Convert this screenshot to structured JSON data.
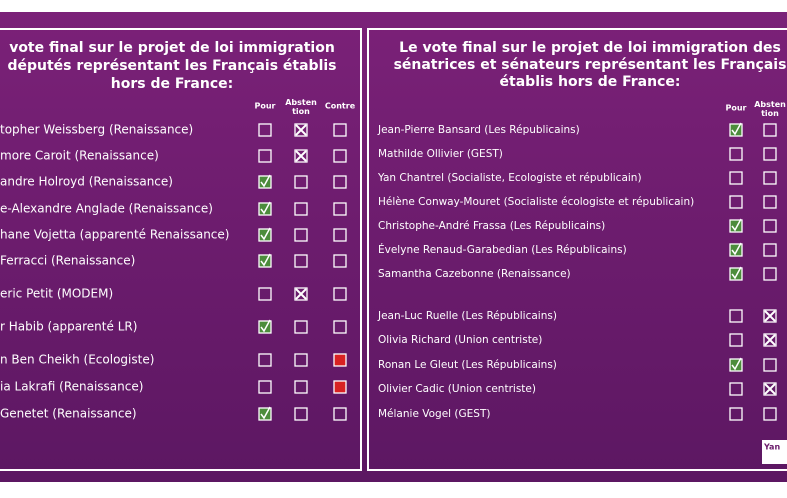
{
  "panels": [
    {
      "title": [
        "vote final sur le projet de loi immigration",
        "députés représentant les Français établis",
        "hors de France:"
      ],
      "columns": [
        {
          "label": "Pour",
          "mark": "check"
        },
        {
          "label": "Absten tion",
          "mark": "cross"
        },
        {
          "label": "Contre",
          "mark": "red"
        }
      ],
      "rows": [
        {
          "name": "topher Weissberg (Renaissance)",
          "vote": 1
        },
        {
          "name": "more Caroit (Renaissance)",
          "vote": 1
        },
        {
          "name": "andre Holroyd (Renaissance)",
          "vote": 0
        },
        {
          "name": "e-Alexandre Anglade (Renaissance)",
          "vote": 0
        },
        {
          "name": "hane Vojetta (apparenté Renaissance)",
          "vote": 0
        },
        {
          "name": "Ferracci (Renaissance)",
          "vote": 0
        },
        {
          "name": "eric Petit (MODEM)",
          "vote": 1
        },
        {
          "name": "r Habib (apparenté LR)",
          "vote": 0
        },
        {
          "name": "n Ben Cheikh (Ecologiste)",
          "vote": 2
        },
        {
          "name": "ia Lakrafi (Renaissance)",
          "vote": 2
        },
        {
          "name": "Genetet (Renaissance)",
          "vote": 0
        }
      ]
    },
    {
      "title": [
        "Le vote final sur le projet de loi immigration des",
        "sénatrices et sénateurs représentant les Français",
        "établis hors de France:"
      ],
      "columns": [
        {
          "label": "Pour",
          "mark": "check"
        },
        {
          "label": "Absten tion",
          "mark": "cross"
        }
      ],
      "rows": [
        {
          "name": "Jean-Pierre Bansard (Les Républicains)",
          "vote": 0
        },
        {
          "name": "Mathilde Ollivier (GEST)",
          "vote": null
        },
        {
          "name": "Yan Chantrel (Socialiste, Ecologiste et républicain)",
          "vote": null
        },
        {
          "name": "Hélène Conway-Mouret (Socialiste écologiste et républicain)",
          "vote": null
        },
        {
          "name": "Christophe-André Frassa (Les Républicains)",
          "vote": 0
        },
        {
          "name": "Évelyne Renaud-Garabedian (Les Républicains)",
          "vote": 0
        },
        {
          "name": "Samantha Cazebonne (Renaissance)",
          "vote": 0
        },
        {
          "name": "Jean-Luc Ruelle (Les Républicains)",
          "vote": 1
        },
        {
          "name": "Olivia Richard (Union centriste)",
          "vote": 1
        },
        {
          "name": "Ronan Le Gleut (Les Républicains)",
          "vote": 0
        },
        {
          "name": "Olivier Cadic (Union centriste)",
          "vote": 1
        },
        {
          "name": "Mélanie Vogel (GEST)",
          "vote": null
        }
      ]
    }
  ],
  "logo": "Yan"
}
